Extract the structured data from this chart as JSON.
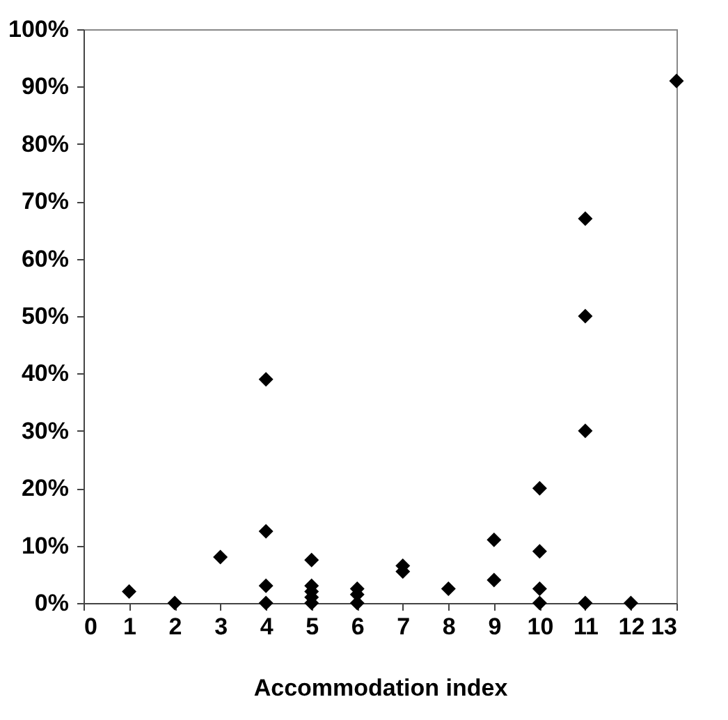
{
  "chart_data": {
    "type": "scatter",
    "xlabel": "Accommodation index",
    "marker": "diamond",
    "grid": false,
    "series": [
      {
        "color": "#000000",
        "x": [
          1,
          2,
          3,
          4,
          4,
          4,
          4,
          5,
          5,
          5,
          5,
          5,
          6,
          6,
          6,
          7,
          7,
          8,
          9,
          9,
          10,
          10,
          10,
          10,
          11,
          11,
          11,
          11,
          12,
          13
        ],
        "values": [
          2,
          0,
          8,
          39,
          12.5,
          3,
          0,
          7.5,
          3,
          2,
          1,
          0,
          2.5,
          1.5,
          0,
          6.5,
          5.5,
          2.5,
          11,
          4,
          20,
          9,
          2.5,
          0,
          67,
          50,
          30,
          0,
          0,
          91
        ]
      }
    ],
    "xlim": [
      0,
      13
    ],
    "xticks": [
      0,
      1,
      2,
      3,
      4,
      5,
      6,
      7,
      8,
      9,
      10,
      11,
      12,
      13
    ],
    "ylim": [
      0,
      100
    ],
    "yticks": [
      {
        "value": 0,
        "label": "0%"
      },
      {
        "value": 10,
        "label": "10%"
      },
      {
        "value": 20,
        "label": "20%"
      },
      {
        "value": 30,
        "label": "30%"
      },
      {
        "value": 40,
        "label": "40%"
      },
      {
        "value": 50,
        "label": "50%"
      },
      {
        "value": 60,
        "label": "60%"
      },
      {
        "value": 70,
        "label": "70%"
      },
      {
        "value": 80,
        "label": "80%"
      },
      {
        "value": 90,
        "label": "90%"
      },
      {
        "value": 100,
        "label": "100%"
      }
    ]
  }
}
